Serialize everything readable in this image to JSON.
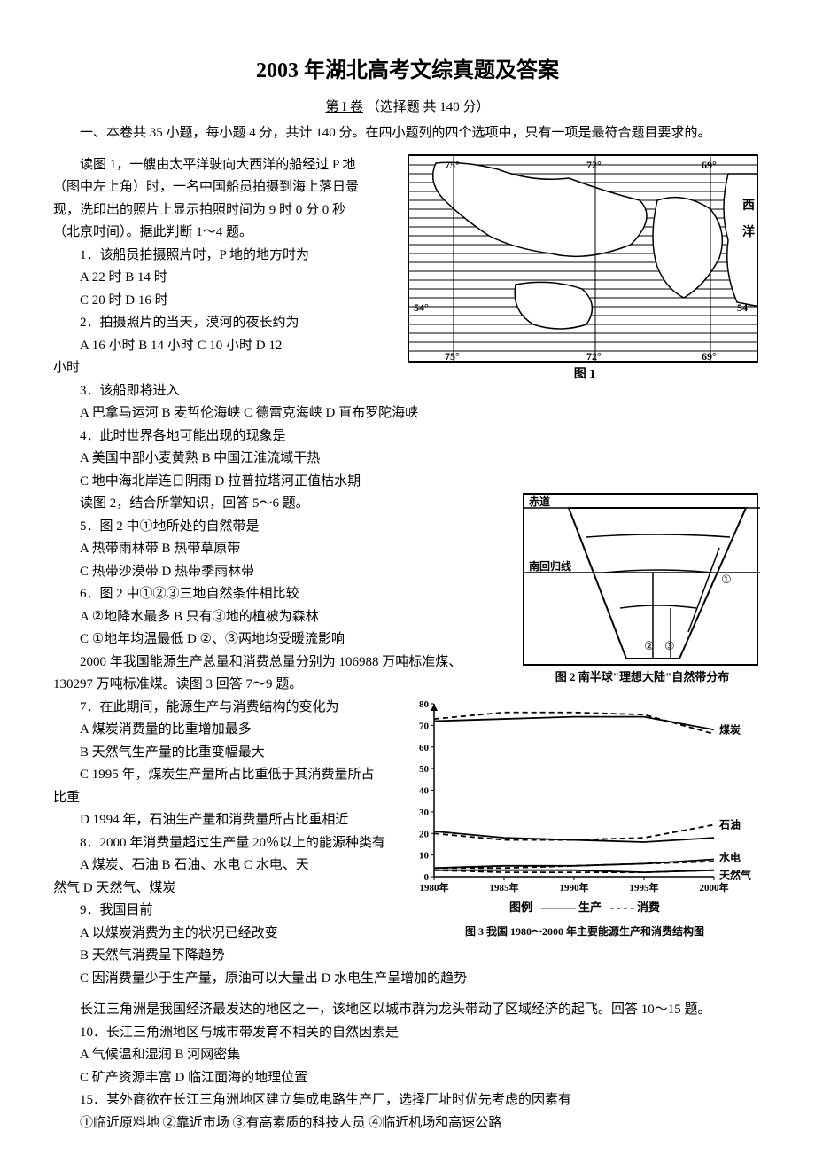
{
  "title": "2003 年湖北高考文综真题及答案",
  "subtitle_part1": "第 I 卷",
  "subtitle_part2": "（选择题  共 140 分）",
  "instruction": "一、本卷共 35 小题，每小题 4 分，共计 140 分。在四小题列的四个选项中，只有一项是最符合题目要求的。",
  "q1_intro_l1": "读图 1，一艘由太平洋驶向大西洋的船经过 P 地",
  "q1_intro_l2": "（图中左上角）时，一名中国船员拍摄到海上落日景",
  "q1_intro_l3": "现，洗印出的照片上显示拍照时间为 9 时 0 分 0 秒",
  "q1_intro_l4": "（北京时间）。据此判断 1～4 题。",
  "q1": "1．该船员拍摄照片时，P 地的地方时为",
  "q1a": "A  22 时    B  14 时",
  "q1b": "C  20 时    D  16 时",
  "q2": "2．拍摄照片的当天，漠河的夜长约为",
  "q2a": "A  16 小时   B  14 小时   C  10 小时   D  12",
  "q2b": "小时",
  "q3": "3．该船即将进入",
  "q3a": "A  巴拿马运河   B  麦哲伦海峡   C  德雷克海峡   D  直布罗陀海峡",
  "q4": "4．此时世界各地可能出现的现象是",
  "q4a": "A  美国中部小麦黄熟    B  中国江淮流域干热",
  "q4b": "C  地中海北岸连日阴雨   D  拉普拉塔河正值枯水期",
  "q5_intro": "读图 2，结合所掌知识，回答 5～6 题。",
  "q5": "5．图 2 中①地所处的自然带是",
  "q5a": "A  热带雨林带   B  热带草原带",
  "q5b": "C  热带沙漠带   D  热带季雨林带",
  "q6": "6．图 2 中①②③三地自然条件相比较",
  "q6a": "A  ②地降水最多 B  只有③地的植被为森林",
  "q6b": "C  ①地年均温最低 D  ②、③两地均受暖流影响",
  "q7_intro_l1": "2000 年我国能源生产总量和消费总量分别为 106988 万吨标准煤、",
  "q7_intro_l2": "130297 万吨标准煤。读图 3 回答 7～9 题。",
  "q7": "7．在此期间，能源生产与消费结构的变化为",
  "q7a": "A  煤炭消费量的比重增加最多",
  "q7b": "B  天然气生产量的比重变幅最大",
  "q7c": "C  1995 年，煤炭生产量所占比重低于其消费量所占",
  "q7d": "比重",
  "q7e": "D  1994 年，石油生产量和消费量所占比重相近",
  "q8": "8．2000 年消费量超过生产量 20％以上的能源种类有",
  "q8a": "A  煤炭、石油   B  石油、水电   C  水电、天",
  "q8b": "然气   D  天然气、煤炭",
  "q9": "9．我国目前",
  "q9a": "A  以煤炭消费为主的状况已经改变",
  "q9b": "B  天然气消费呈下降趋势",
  "q9c": "C  因消费量少于生产量，原油可以大量出   D  水电生产呈增加的趋势",
  "q10_intro": "长江三角洲是我国经济最发达的地区之一，该地区以城市群为龙头带动了区域经济的起飞。回答 10～15 题。",
  "q10": "10．长江三角洲地区与城市带发育不相关的自然因素是",
  "q10a": "A  气候温和湿润   B  河网密集",
  "q10b": "C  矿产资源丰富   D  临江面海的地理位置",
  "q15": "15．某外商欲在长江三角洲地区建立集成电路生产厂，选择厂址时优先考虑的因素有",
  "q15a": "①临近原料地  ②靠近市场  ③有高素质的科技人员  ④临近机场和高速公路",
  "fig1": {
    "caption": "图 1",
    "lons": [
      "75°",
      "72°",
      "69°"
    ],
    "lats": [
      "54°",
      "54°"
    ],
    "land_char": "西洋",
    "bg": "#ffffff",
    "line_color": "#000000"
  },
  "fig2": {
    "caption": "图 2  南半球\"理想大陆\"自然带分布",
    "equator": "赤道",
    "tropic": "南回归线",
    "marks": [
      "①",
      "②",
      "③"
    ],
    "bg": "#ffffff",
    "line_color": "#000000"
  },
  "fig3": {
    "caption": "图 3  我国 1980～2000 年主要能源生产和消费结构图",
    "legend_label": "图例",
    "legend_prod": "生产",
    "legend_cons": "消费",
    "x_labels": [
      "1980年",
      "1985年",
      "1990年",
      "1995年",
      "2000年"
    ],
    "y_ticks": [
      0,
      10,
      20,
      30,
      40,
      50,
      60,
      70,
      80
    ],
    "series_labels": [
      "煤炭",
      "石油",
      "水电",
      "天然气"
    ],
    "coal_prod": [
      72,
      73,
      74,
      74,
      68
    ],
    "coal_cons": [
      73,
      76,
      76,
      75,
      66
    ],
    "oil_prod": [
      21,
      18,
      17,
      16,
      18
    ],
    "oil_cons": [
      20,
      17,
      17,
      18,
      24
    ],
    "hydro_prod": [
      4,
      5,
      5,
      6,
      8
    ],
    "hydro_cons": [
      4,
      4,
      5,
      6,
      7
    ],
    "gas_prod": [
      3,
      3,
      3,
      2,
      3
    ],
    "gas_cons": [
      3,
      2,
      2,
      2,
      3
    ],
    "axis_color": "#000000",
    "bg": "#ffffff"
  }
}
